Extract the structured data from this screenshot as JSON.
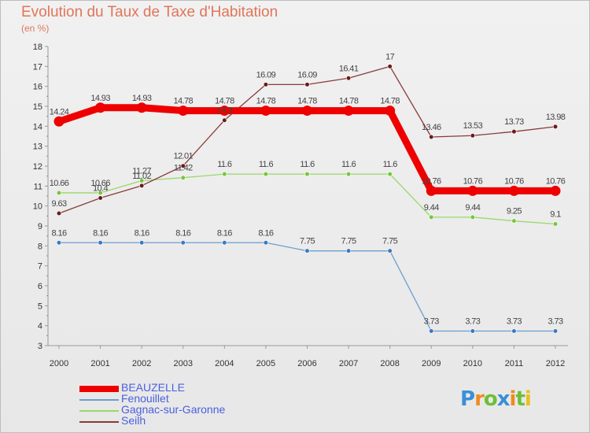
{
  "title": "Evolution du Taux de Taxe d'Habitation",
  "subtitle": "(en %)",
  "logo": {
    "text": "Proxiti",
    "letters": [
      {
        "ch": "P",
        "color": "#3a8fd6"
      },
      {
        "ch": "r",
        "color": "#f08a20"
      },
      {
        "ch": "o",
        "color": "#6cbf3a"
      },
      {
        "ch": "x",
        "color": "#3a8fd6"
      },
      {
        "ch": "i",
        "color": "#f08a20"
      },
      {
        "ch": "t",
        "color": "#6cbf3a"
      },
      {
        "ch": "i",
        "color": "#e8c020"
      }
    ]
  },
  "chart_data": {
    "type": "line",
    "title": "Evolution du Taux de Taxe d'Habitation",
    "subtitle": "(en %)",
    "x": [
      "2000",
      "2001",
      "2002",
      "2003",
      "2004",
      "2005",
      "2006",
      "2007",
      "2008",
      "2009",
      "2010",
      "2011",
      "2012"
    ],
    "ylim": [
      3,
      18
    ],
    "yticks": [
      3,
      4,
      5,
      6,
      7,
      8,
      9,
      10,
      11,
      12,
      13,
      14,
      15,
      16,
      17,
      18
    ],
    "grid": false,
    "legend_position": "bottom-left",
    "series": [
      {
        "name": "BEAUZELLE",
        "color": "#ee0000",
        "values": [
          14.24,
          14.93,
          14.93,
          14.78,
          14.78,
          14.78,
          14.78,
          14.78,
          14.78,
          10.76,
          10.76,
          10.76,
          10.76
        ],
        "labels": [
          "14.24",
          "14.93",
          "14.93",
          "14.78",
          "14.78",
          "14.78",
          "14.78",
          "14.78",
          "14.78",
          "10.76",
          "10.76",
          "10.76",
          "10.76"
        ]
      },
      {
        "name": "Fenouillet",
        "color": "#6a9fcf",
        "marker_color": "#3a78c2",
        "values": [
          8.16,
          8.16,
          8.16,
          8.16,
          8.16,
          8.16,
          7.75,
          7.75,
          7.75,
          3.73,
          3.73,
          3.73,
          3.73
        ],
        "labels": [
          "8.16",
          "8.16",
          "8.16",
          "8.16",
          "8.16",
          "8.16",
          "7.75",
          "7.75",
          "7.75",
          "3.73",
          "3.73",
          "3.73",
          "3.73"
        ]
      },
      {
        "name": "Gagnac-sur-Garonne",
        "color": "#9ad86a",
        "marker_color": "#72c83a",
        "values": [
          10.66,
          10.66,
          11.27,
          11.42,
          11.6,
          11.6,
          11.6,
          11.6,
          11.6,
          9.44,
          9.44,
          9.25,
          9.1
        ],
        "labels": [
          "10.66",
          "10.66",
          "11.27",
          "11.42",
          "11.6",
          "11.6",
          "11.6",
          "11.6",
          "11.6",
          "9.44",
          "9.44",
          "9.25",
          "9.1"
        ]
      },
      {
        "name": "Seilh",
        "color": "#8a3a3a",
        "marker_color": "#6a1a1a",
        "values": [
          9.63,
          10.4,
          11.02,
          12.01,
          14.3,
          16.09,
          16.09,
          16.41,
          17,
          13.46,
          13.53,
          13.73,
          13.98
        ],
        "labels": [
          "9.63",
          "10.4",
          "11.02",
          "12.01",
          "14.3",
          "16.09",
          "16.09",
          "16.41",
          "17",
          "13.46",
          "13.53",
          "13.73",
          "13.98"
        ]
      }
    ]
  }
}
